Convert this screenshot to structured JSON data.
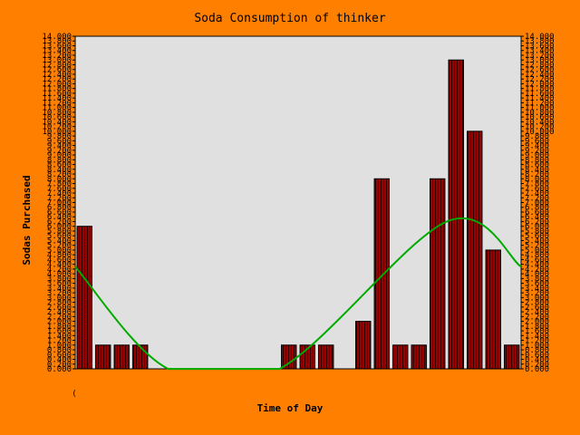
{
  "chart_data": {
    "type": "bar",
    "title": "Soda Consumption of thinker",
    "xlabel": "Time of Day",
    "ylabel": "Sodas Purchased",
    "x_tick_label": "(",
    "ylim": [
      0,
      14
    ],
    "y_tick_step": 0.2,
    "y_tick_labels_left": true,
    "y_tick_labels_right": true,
    "grid": false,
    "values": [
      6,
      1,
      1,
      1,
      0,
      0,
      0,
      0,
      0,
      0,
      0,
      1,
      1,
      1,
      0,
      2,
      8,
      1,
      1,
      8,
      13,
      10,
      5,
      1
    ],
    "trend_line": {
      "type": "smooth",
      "points": [
        [
          0,
          4.3
        ],
        [
          5,
          0
        ],
        [
          11,
          0
        ],
        [
          20,
          6.2
        ],
        [
          24,
          4.3
        ]
      ]
    },
    "colors": {
      "background": "#ff8000",
      "plot_area": "#e0e0e0",
      "bar_fill": "#990000",
      "bar_stripe": "#330000",
      "trend_line": "#00aa00",
      "axis": "#000000"
    }
  }
}
